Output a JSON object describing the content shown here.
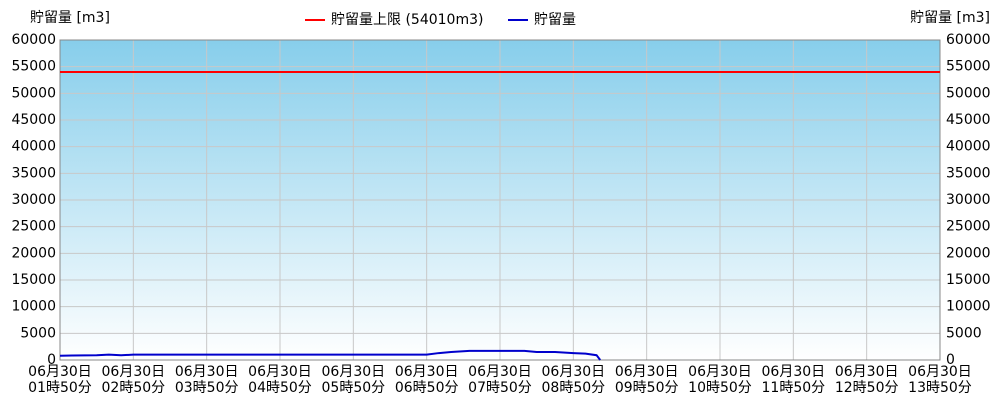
{
  "chart_data": {
    "type": "line",
    "y_title_left": "貯留量 [m3]",
    "y_title_right": "貯留量 [m3]",
    "limit": {
      "name": "貯留量上限 (54010m3)",
      "value": 54010,
      "color": "#ff0000"
    },
    "x": [
      110,
      120,
      140,
      150,
      160,
      170,
      180,
      200,
      410,
      420,
      430,
      445,
      490,
      500,
      515,
      530,
      540,
      549,
      552
    ],
    "series": [
      {
        "name": "貯留量",
        "color": "#0000cc",
        "values": [
          800,
          850,
          900,
          1000,
          900,
          1000,
          1000,
          1000,
          1000,
          1300,
          1500,
          1700,
          1700,
          1500,
          1500,
          1300,
          1200,
          900,
          0
        ]
      }
    ],
    "xlim": [
      110,
      830
    ],
    "xticks": [
      {
        "value": 110,
        "label": "06月30日\n01時50分"
      },
      {
        "value": 170,
        "label": "06月30日\n02時50分"
      },
      {
        "value": 230,
        "label": "06月30日\n03時50分"
      },
      {
        "value": 290,
        "label": "06月30日\n04時50分"
      },
      {
        "value": 350,
        "label": "06月30日\n05時50分"
      },
      {
        "value": 410,
        "label": "06月30日\n06時50分"
      },
      {
        "value": 470,
        "label": "06月30日\n07時50分"
      },
      {
        "value": 530,
        "label": "06月30日\n08時50分"
      },
      {
        "value": 590,
        "label": "06月30日\n09時50分"
      },
      {
        "value": 650,
        "label": "06月30日\n10時50分"
      },
      {
        "value": 710,
        "label": "06月30日\n11時50分"
      },
      {
        "value": 770,
        "label": "06月30日\n12時50分"
      },
      {
        "value": 830,
        "label": "06月30日\n13時50分"
      }
    ],
    "ylim": [
      0,
      60000
    ],
    "yticks": [
      0,
      5000,
      10000,
      15000,
      20000,
      25000,
      30000,
      35000,
      40000,
      45000,
      50000,
      55000,
      60000
    ],
    "grid": true
  }
}
